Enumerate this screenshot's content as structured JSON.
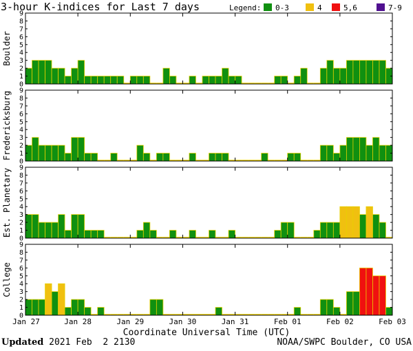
{
  "chart_data": {
    "type": "bar",
    "title": "3-hour K-indices for Last 7 days",
    "legend": {
      "label": "Legend:",
      "entries": [
        {
          "label": "0-3",
          "color": "#109010"
        },
        {
          "label": "4",
          "color": "#f0c010"
        },
        {
          "label": "5,6",
          "color": "#f01010"
        },
        {
          "label": "7-9",
          "color": "#501090"
        }
      ]
    },
    "xlabel": "Coordinate Universal Time (UTC)",
    "x_ticks": [
      "Jan 27",
      "Jan 28",
      "Jan 29",
      "Jan 30",
      "Jan 31",
      "Feb 01",
      "Feb 02",
      "Feb 03"
    ],
    "y_ticks": [
      "0",
      "1",
      "2",
      "3",
      "4",
      "5",
      "6",
      "7",
      "8",
      "9"
    ],
    "ylim": [
      0,
      9
    ],
    "intervals_per_day": 8,
    "days": 7,
    "series": [
      {
        "name": "Boulder",
        "values": [
          2,
          3,
          3,
          3,
          2,
          2,
          1,
          2,
          3,
          1,
          1,
          1,
          1,
          1,
          1,
          0,
          1,
          1,
          1,
          0,
          0,
          2,
          1,
          0,
          0,
          1,
          0,
          1,
          1,
          1,
          2,
          1,
          1,
          0,
          0,
          0,
          0,
          0,
          1,
          1,
          0,
          1,
          2,
          0,
          0,
          2,
          3,
          2,
          2,
          3,
          3,
          3,
          3,
          3,
          3,
          2
        ]
      },
      {
        "name": "Fredericksburg",
        "values": [
          2,
          3,
          2,
          2,
          2,
          2,
          1,
          3,
          3,
          1,
          1,
          0,
          0,
          1,
          0,
          0,
          0,
          2,
          1,
          0,
          1,
          1,
          0,
          0,
          0,
          1,
          0,
          0,
          1,
          1,
          1,
          0,
          0,
          0,
          0,
          0,
          1,
          0,
          0,
          0,
          1,
          1,
          0,
          0,
          0,
          2,
          2,
          1,
          2,
          3,
          3,
          3,
          2,
          3,
          2,
          2
        ]
      },
      {
        "name": "Est. Planetary",
        "values": [
          3,
          3,
          2,
          2,
          2,
          3,
          1,
          3,
          3,
          1,
          1,
          1,
          0,
          0,
          0,
          0,
          0,
          1,
          2,
          1,
          0,
          0,
          1,
          0,
          0,
          1,
          0,
          0,
          1,
          0,
          0,
          1,
          0,
          0,
          0,
          0,
          0,
          0,
          1,
          2,
          2,
          0,
          0,
          0,
          1,
          2,
          2,
          2,
          4,
          4,
          4,
          3,
          4,
          3,
          2,
          0
        ]
      },
      {
        "name": "College",
        "values": [
          2,
          2,
          2,
          4,
          3,
          4,
          1,
          2,
          2,
          1,
          0,
          1,
          0,
          0,
          0,
          0,
          0,
          0,
          0,
          2,
          2,
          0,
          0,
          0,
          0,
          0,
          0,
          0,
          0,
          1,
          0,
          0,
          0,
          0,
          0,
          0,
          0,
          0,
          0,
          0,
          0,
          1,
          0,
          0,
          0,
          2,
          2,
          1,
          0,
          3,
          3,
          6,
          6,
          5,
          5,
          1
        ]
      }
    ]
  },
  "footer": {
    "updated_label": "Updated",
    "updated_value": "2021 Feb  2 2130",
    "source": "NOAA/SWPC Boulder, CO USA"
  }
}
